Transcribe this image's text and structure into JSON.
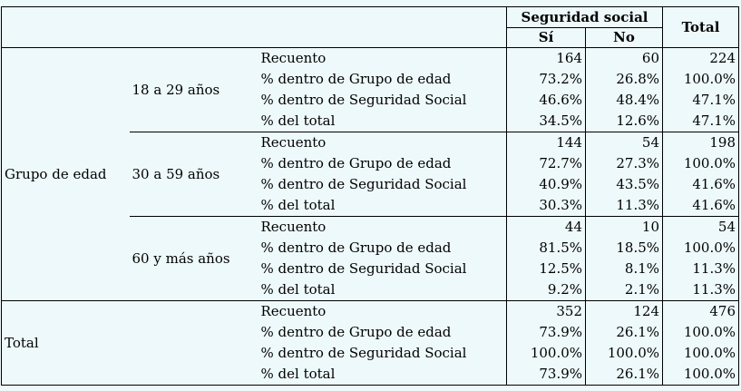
{
  "header": {
    "group_label": "Seguridad social",
    "col_si": "Sí",
    "col_no": "No",
    "col_total": "Total"
  },
  "row_group_label": "Grupo de edad",
  "total_label": "Total",
  "groups": [
    {
      "label": "18 a 29 años",
      "rows": [
        {
          "stat": "Recuento",
          "si": "164",
          "no": "60",
          "total": "224"
        },
        {
          "stat": "% dentro de Grupo de edad",
          "si": "73.2%",
          "no": "26.8%",
          "total": "100.0%"
        },
        {
          "stat": "% dentro de Seguridad Social",
          "si": "46.6%",
          "no": "48.4%",
          "total": "47.1%"
        },
        {
          "stat": "% del total",
          "si": "34.5%",
          "no": "12.6%",
          "total": "47.1%"
        }
      ]
    },
    {
      "label": "30 a 59 años",
      "rows": [
        {
          "stat": "Recuento",
          "si": "144",
          "no": "54",
          "total": "198"
        },
        {
          "stat": "% dentro de Grupo de edad",
          "si": "72.7%",
          "no": "27.3%",
          "total": "100.0%"
        },
        {
          "stat": "% dentro de Seguridad Social",
          "si": "40.9%",
          "no": "43.5%",
          "total": "41.6%"
        },
        {
          "stat": "% del total",
          "si": "30.3%",
          "no": "11.3%",
          "total": "41.6%"
        }
      ]
    },
    {
      "label": "60 y más años",
      "rows": [
        {
          "stat": "Recuento",
          "si": "44",
          "no": "10",
          "total": "54"
        },
        {
          "stat": "% dentro de Grupo de edad",
          "si": "81.5%",
          "no": "18.5%",
          "total": "100.0%"
        },
        {
          "stat": "% dentro de Seguridad Social",
          "si": "12.5%",
          "no": "8.1%",
          "total": "11.3%"
        },
        {
          "stat": "% del total",
          "si": "9.2%",
          "no": "2.1%",
          "total": "11.3%"
        }
      ]
    }
  ],
  "total_rows": [
    {
      "stat": "Recuento",
      "si": "352",
      "no": "124",
      "total": "476"
    },
    {
      "stat": "% dentro de Grupo de edad",
      "si": "73.9%",
      "no": "26.1%",
      "total": "100.0%"
    },
    {
      "stat": "% dentro de Seguridad Social",
      "si": "100.0%",
      "no": "100.0%",
      "total": "100.0%"
    },
    {
      "stat": "% del total",
      "si": "73.9%",
      "no": "26.1%",
      "total": "100.0%"
    }
  ]
}
